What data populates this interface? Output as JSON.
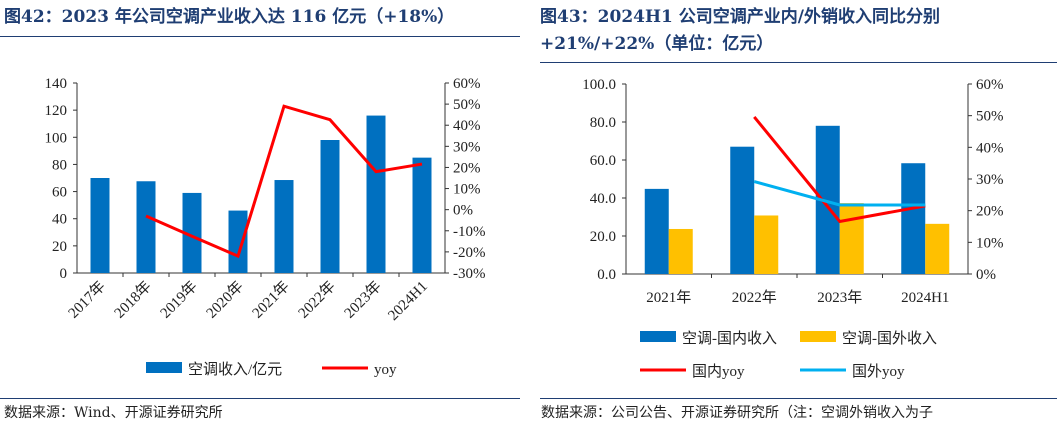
{
  "left": {
    "title": "图42：2023 年公司空调产业收入达 116 亿元（+18%）",
    "source": "数据来源：Wind、开源证券研究所"
  },
  "right": {
    "title_line1": "图43：2024H1  公司空调产业内/外销收入同比分别",
    "title_line2": "+21%/+22%（单位：亿元）",
    "source": "数据来源：公司公告、开源证券研究所（注：空调外销收入为子"
  },
  "chart_data": [
    {
      "type": "bar+line",
      "categories": [
        "2017年",
        "2018年",
        "2019年",
        "2020年",
        "2021年",
        "2022年",
        "2023年",
        "2024H1"
      ],
      "series": [
        {
          "name": "空调收入/亿元",
          "type": "bar",
          "axis": "left",
          "color": "#0070c0",
          "values": [
            70,
            67.6,
            59,
            46,
            68.5,
            98,
            116,
            85
          ]
        },
        {
          "name": "yoy",
          "type": "line",
          "axis": "right",
          "color": "#ff0000",
          "values": [
            null,
            -3,
            -12.6,
            -22,
            49,
            42.6,
            18,
            21.6
          ]
        }
      ],
      "y_left": {
        "min": 0,
        "max": 140,
        "ticks": [
          "0",
          "20",
          "40",
          "60",
          "80",
          "100",
          "120",
          "140"
        ]
      },
      "y_right": {
        "min": -30,
        "max": 60,
        "ticks": [
          "-30%",
          "-20%",
          "-10%",
          "0%",
          "10%",
          "20%",
          "30%",
          "40%",
          "50%",
          "60%"
        ]
      },
      "legend": "bottom",
      "grid": false
    },
    {
      "type": "bar+line",
      "categories": [
        "2021年",
        "2022年",
        "2023年",
        "2024H1"
      ],
      "series": [
        {
          "name": "空调-国内收入",
          "type": "bar",
          "axis": "left",
          "color": "#0070c0",
          "values": [
            44.8,
            67,
            78,
            58.3
          ]
        },
        {
          "name": "空调-国外收入",
          "type": "bar",
          "axis": "left",
          "color": "#ffc000",
          "values": [
            23.7,
            30.8,
            37.3,
            26.4
          ]
        },
        {
          "name": "国内yoy",
          "type": "line",
          "axis": "right",
          "color": "#ff0000",
          "values": [
            null,
            49.6,
            16.6,
            21.5
          ]
        },
        {
          "name": "国外yoy",
          "type": "line",
          "axis": "right",
          "color": "#00b0f0",
          "values": [
            null,
            29.2,
            21.8,
            21.8
          ]
        }
      ],
      "y_left": {
        "min": 0,
        "max": 100,
        "ticks": [
          "0.0",
          "20.0",
          "40.0",
          "60.0",
          "80.0",
          "100.0"
        ]
      },
      "y_right": {
        "min": 0,
        "max": 60,
        "ticks": [
          "0%",
          "10%",
          "20%",
          "30%",
          "40%",
          "50%",
          "60%"
        ]
      },
      "legend": "bottom",
      "grid": false
    }
  ]
}
